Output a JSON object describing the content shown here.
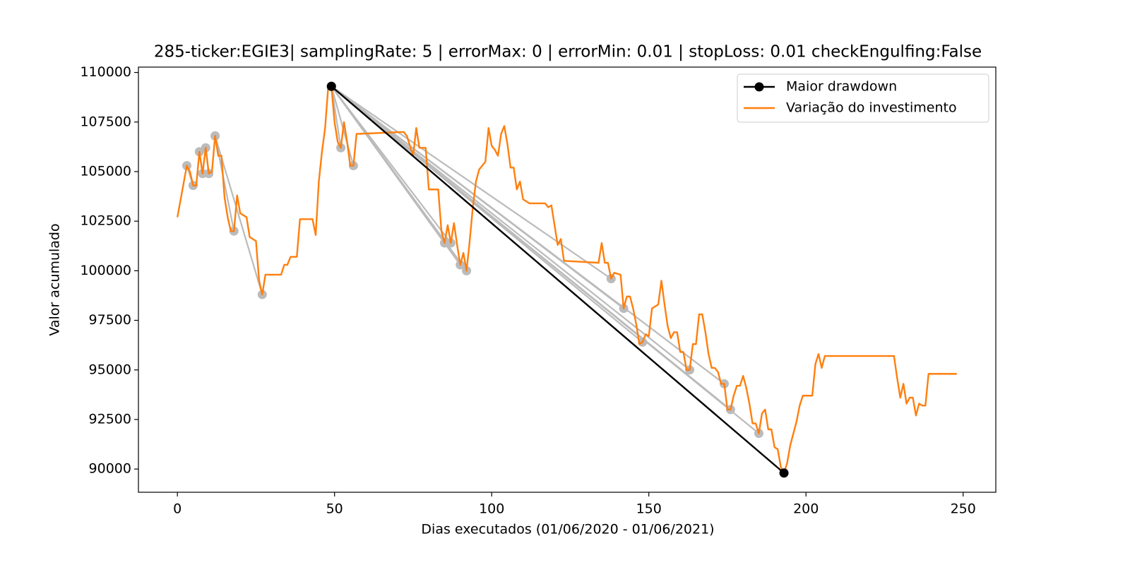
{
  "chart_data": {
    "type": "line",
    "title": "285-ticker:EGIE3| samplingRate: 5 | errorMax: 0 | errorMin: 0.01 | stopLoss: 0.01 checkEngulfing:False",
    "xlabel": "Dias executados (01/06/2020 - 01/06/2021)",
    "ylabel": "Valor acumulado",
    "xlim": [
      -12.4,
      260.4
    ],
    "ylim": [
      88830,
      110270
    ],
    "xticks": [
      0,
      50,
      100,
      150,
      200,
      250
    ],
    "yticks": [
      90000,
      92500,
      95000,
      97500,
      100000,
      102500,
      105000,
      107500,
      110000
    ],
    "grid": false,
    "legend": "upper right",
    "series": [
      {
        "name": "Maior drawdown",
        "color": "#000000",
        "marker": true,
        "x": [
          49,
          193
        ],
        "values": [
          109300,
          89800
        ]
      },
      {
        "name": "Variação do investimento",
        "color": "#ff7f0e",
        "marker": false,
        "x": [
          0,
          3,
          4,
          5,
          6,
          7,
          8,
          9,
          10,
          11,
          12,
          13,
          14,
          15,
          16,
          17,
          18,
          19,
          20,
          22,
          23,
          25,
          26,
          27,
          28,
          33,
          34,
          35,
          36,
          38,
          39,
          43,
          44,
          45,
          46,
          47,
          48,
          49,
          50,
          51,
          52,
          53,
          54,
          55,
          56,
          57,
          72,
          73,
          75,
          76,
          77,
          79,
          80,
          83,
          84,
          85,
          86,
          87,
          88,
          89,
          90,
          91,
          92,
          93,
          94,
          95,
          96,
          98,
          99,
          100,
          101,
          102,
          103,
          104,
          105,
          106,
          107,
          108,
          109,
          110,
          111,
          112,
          117,
          118,
          119,
          120,
          121,
          122,
          123,
          134,
          135,
          136,
          137,
          138,
          139,
          141,
          142,
          143,
          144,
          145,
          146,
          147,
          148,
          149,
          150,
          151,
          153,
          154,
          155,
          156,
          157,
          158,
          159,
          160,
          161,
          162,
          163,
          164,
          165,
          166,
          167,
          168,
          169,
          170,
          171,
          172,
          173,
          174,
          175,
          176,
          177,
          178,
          179,
          180,
          181,
          182,
          183,
          184,
          185,
          186,
          187,
          188,
          189,
          190,
          191,
          192,
          193,
          194,
          195,
          196,
          197,
          198,
          199,
          202,
          203,
          204,
          205,
          206,
          228,
          229,
          230,
          231,
          232,
          233,
          234,
          235,
          236,
          237,
          238,
          239,
          248
        ],
        "values": [
          102700,
          105300,
          105000,
          104300,
          104300,
          106000,
          104900,
          106200,
          104900,
          105000,
          106800,
          105800,
          105800,
          103700,
          102700,
          102000,
          102000,
          103800,
          102900,
          102700,
          101700,
          101500,
          99500,
          98800,
          99800,
          99800,
          100300,
          100300,
          100700,
          100700,
          102600,
          102600,
          101800,
          104500,
          106000,
          107200,
          109300,
          109300,
          107500,
          106500,
          106200,
          107500,
          106500,
          105300,
          105300,
          106900,
          107000,
          106800,
          105800,
          107200,
          106200,
          106200,
          104100,
          104100,
          102000,
          101400,
          102300,
          101400,
          102400,
          101300,
          100300,
          100900,
          100000,
          101500,
          103200,
          104500,
          105100,
          105500,
          107200,
          106300,
          106100,
          105800,
          106900,
          107300,
          106400,
          105200,
          105200,
          104100,
          104500,
          103600,
          103500,
          103400,
          103400,
          103200,
          103300,
          102300,
          101300,
          101600,
          100500,
          100400,
          101400,
          100400,
          100400,
          99600,
          99900,
          99800,
          98100,
          98700,
          98700,
          98100,
          97300,
          96300,
          96400,
          96800,
          96700,
          98100,
          98300,
          99500,
          98300,
          97200,
          96600,
          96900,
          96900,
          95900,
          95900,
          95000,
          95000,
          96300,
          96300,
          97800,
          97800,
          96900,
          95800,
          95100,
          95100,
          94900,
          94300,
          94300,
          93000,
          93000,
          93700,
          94200,
          94200,
          94700,
          94100,
          93300,
          92300,
          92300,
          91800,
          92800,
          93000,
          92000,
          92000,
          91100,
          91000,
          90100,
          89800,
          90300,
          91200,
          91800,
          92400,
          93200,
          93700,
          93700,
          95300,
          95800,
          95100,
          95700,
          95700,
          94600,
          93600,
          94300,
          93300,
          93600,
          93600,
          92700,
          93300,
          93200,
          93200,
          94800,
          94800
        ]
      }
    ],
    "candidates": {
      "color": "#bbbbbb",
      "lines": [
        {
          "x": [
            3,
            5
          ],
          "values": [
            105300,
            104300
          ]
        },
        {
          "x": [
            7,
            8
          ],
          "values": [
            106000,
            104900
          ]
        },
        {
          "x": [
            9,
            10
          ],
          "values": [
            106200,
            104900
          ]
        },
        {
          "x": [
            12,
            18
          ],
          "values": [
            106800,
            102000
          ]
        },
        {
          "x": [
            12,
            27
          ],
          "values": [
            106800,
            98800
          ]
        },
        {
          "x": [
            49,
            52
          ],
          "values": [
            109300,
            106200
          ]
        },
        {
          "x": [
            49,
            56
          ],
          "values": [
            109300,
            105300
          ]
        },
        {
          "x": [
            49,
            85
          ],
          "values": [
            109300,
            101400
          ]
        },
        {
          "x": [
            49,
            87
          ],
          "values": [
            109300,
            101400
          ]
        },
        {
          "x": [
            49,
            90
          ],
          "values": [
            109300,
            100300
          ]
        },
        {
          "x": [
            49,
            92
          ],
          "values": [
            109300,
            100000
          ]
        },
        {
          "x": [
            49,
            138
          ],
          "values": [
            109300,
            99600
          ]
        },
        {
          "x": [
            49,
            142
          ],
          "values": [
            109300,
            98100
          ]
        },
        {
          "x": [
            49,
            148
          ],
          "values": [
            109300,
            96400
          ]
        },
        {
          "x": [
            49,
            163
          ],
          "values": [
            109300,
            95000
          ]
        },
        {
          "x": [
            49,
            174
          ],
          "values": [
            109300,
            94300
          ]
        },
        {
          "x": [
            49,
            176
          ],
          "values": [
            109300,
            93000
          ]
        },
        {
          "x": [
            49,
            185
          ],
          "values": [
            109300,
            91800
          ]
        }
      ]
    }
  }
}
